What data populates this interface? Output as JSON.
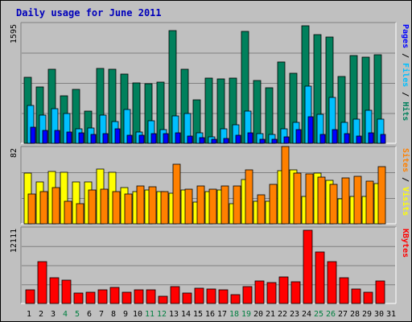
{
  "title": "Daily usage for June 2011",
  "colors": {
    "hits": "#00805c",
    "files": "#00c0ff",
    "pages": "#0000ff",
    "visits": "#ffff00",
    "sites": "#ff8000",
    "kbytes": "#ff0000",
    "title": "#0000bb",
    "weekend_day": "#008040"
  },
  "chart_data": [
    {
      "type": "bar",
      "title": "Daily usage for June 2011",
      "y_tick_label": "1595",
      "ylim": [
        0,
        1595
      ],
      "legend": [
        "Hits",
        "Files",
        "Pages"
      ],
      "legend_placement": "right",
      "categories": [
        "1",
        "2",
        "3",
        "4",
        "5",
        "6",
        "7",
        "8",
        "9",
        "10",
        "11",
        "12",
        "13",
        "14",
        "15",
        "16",
        "17",
        "18",
        "19",
        "20",
        "21",
        "22",
        "23",
        "24",
        "25",
        "26",
        "27",
        "28",
        "29",
        "30",
        "31"
      ],
      "series": [
        {
          "name": "Hits",
          "values": [
            900,
            760,
            1010,
            640,
            730,
            440,
            1020,
            1000,
            940,
            820,
            810,
            830,
            1530,
            1010,
            590,
            880,
            870,
            880,
            1520,
            850,
            750,
            1100,
            950,
            1600,
            1470,
            1440,
            910,
            1190,
            1170,
            1200,
            0
          ]
        },
        {
          "name": "Files",
          "values": [
            510,
            380,
            470,
            400,
            200,
            210,
            380,
            290,
            460,
            150,
            310,
            190,
            370,
            400,
            140,
            90,
            200,
            250,
            440,
            130,
            120,
            200,
            280,
            780,
            390,
            620,
            280,
            330,
            450,
            330,
            0
          ]
        },
        {
          "name": "Pages",
          "values": [
            220,
            170,
            170,
            150,
            140,
            120,
            130,
            200,
            110,
            110,
            130,
            130,
            140,
            100,
            80,
            60,
            70,
            110,
            140,
            60,
            60,
            90,
            190,
            360,
            120,
            190,
            130,
            100,
            140,
            120,
            0
          ]
        }
      ]
    },
    {
      "type": "bar",
      "y_tick_label": "82",
      "ylim": [
        0,
        82
      ],
      "legend": [
        "Visits",
        "Sites"
      ],
      "legend_placement": "right",
      "categories": [
        "1",
        "2",
        "3",
        "4",
        "5",
        "6",
        "7",
        "8",
        "9",
        "10",
        "11",
        "12",
        "13",
        "14",
        "15",
        "16",
        "17",
        "18",
        "19",
        "20",
        "21",
        "22",
        "23",
        "24",
        "25",
        "26",
        "27",
        "28",
        "29",
        "30",
        "31"
      ],
      "series": [
        {
          "name": "Visits",
          "values": [
            56,
            46,
            58,
            57,
            46,
            46,
            61,
            57,
            40,
            36,
            37,
            36,
            34,
            37,
            24,
            36,
            37,
            22,
            49,
            25,
            25,
            59,
            60,
            30,
            56,
            48,
            28,
            30,
            30,
            45,
            0
          ]
        },
        {
          "name": "Sites",
          "values": [
            33,
            36,
            40,
            25,
            22,
            37,
            38,
            36,
            33,
            42,
            41,
            36,
            66,
            38,
            42,
            38,
            42,
            42,
            60,
            32,
            44,
            86,
            56,
            55,
            52,
            44,
            51,
            53,
            47,
            63,
            0
          ]
        }
      ]
    },
    {
      "type": "bar",
      "y_tick_label": "12111",
      "ylim": [
        0,
        12111
      ],
      "legend": [
        "KBytes"
      ],
      "legend_placement": "right",
      "categories": [
        "1",
        "2",
        "3",
        "4",
        "5",
        "6",
        "7",
        "8",
        "9",
        "10",
        "11",
        "12",
        "13",
        "14",
        "15",
        "16",
        "17",
        "18",
        "19",
        "20",
        "21",
        "22",
        "23",
        "24",
        "25",
        "26",
        "27",
        "28",
        "29",
        "30",
        "31"
      ],
      "series": [
        {
          "name": "KBytes",
          "values": [
            2300,
            6900,
            4200,
            3900,
            1700,
            1800,
            2200,
            2700,
            1800,
            2300,
            2300,
            1200,
            2800,
            1700,
            2500,
            2400,
            2300,
            1500,
            2800,
            3700,
            3400,
            4400,
            3600,
            12100,
            8500,
            6900,
            4300,
            2400,
            1800,
            3700,
            0
          ]
        }
      ]
    }
  ],
  "x_labels": [
    "1",
    "2",
    "3",
    "4",
    "5",
    "6",
    "7",
    "8",
    "9",
    "10",
    "11",
    "12",
    "13",
    "14",
    "15",
    "16",
    "17",
    "18",
    "19",
    "20",
    "21",
    "22",
    "23",
    "24",
    "25",
    "26",
    "27",
    "28",
    "29",
    "30",
    "31"
  ],
  "weekend_days": [
    4,
    5,
    11,
    12,
    18,
    19,
    25,
    26
  ]
}
